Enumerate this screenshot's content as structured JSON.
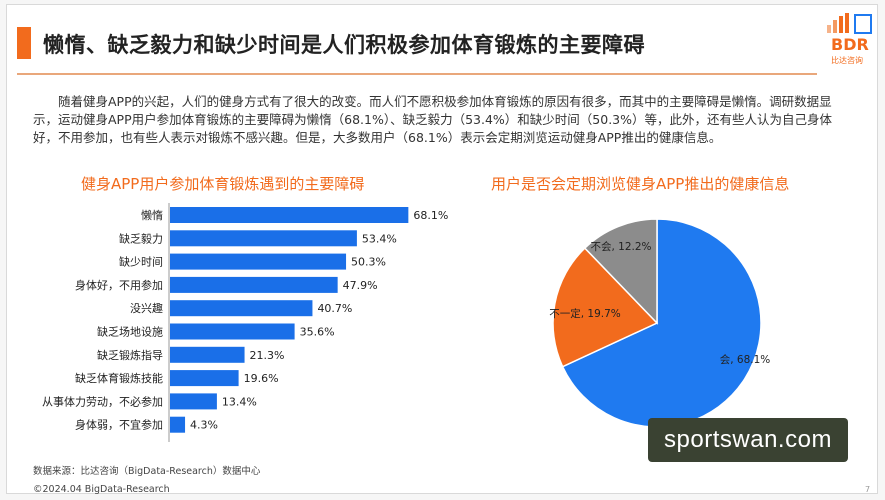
{
  "header": {
    "title": "懒惰、缺乏毅力和缺少时间是人们积极参加体育锻炼的主要障碍"
  },
  "logo": {
    "text": "BDR",
    "sub": "比达咨询"
  },
  "intro": "随着健身APP的兴起，人们的健身方式有了很大的改变。而人们不愿积极参加体育锻炼的原因有很多，而其中的主要障碍是懒惰。调研数据显示，运动健身APP用户参加体育锻炼的主要障碍为懒惰（68.1%）、缺乏毅力（53.4%）和缺少时间（50.3%）等，此外，还有些人认为自己身体好，不用参加，也有些人表示对锻炼不感兴趣。但是，大多数用户（68.1%）表示会定期浏览运动健身APP推出的健康信息。",
  "colors": {
    "accent": "#f26b1d",
    "bar": "#1a6fe8",
    "pie_yes": "#1f7af0",
    "pie_maybe": "#f26b1d",
    "pie_no": "#8c8c8c"
  },
  "chart_data": [
    {
      "type": "bar",
      "orientation": "horizontal",
      "title": "健身APP用户参加体育锻炼遇到的主要障碍",
      "categories": [
        "懒惰",
        "缺乏毅力",
        "缺少时间",
        "身体好，不用参加",
        "没兴趣",
        "缺乏场地设施",
        "缺乏锻炼指导",
        "缺乏体育锻炼技能",
        "从事体力劳动，不必参加",
        "身体弱，不宜参加"
      ],
      "values": [
        68.1,
        53.4,
        50.3,
        47.9,
        40.7,
        35.6,
        21.3,
        19.6,
        13.4,
        4.3
      ],
      "value_labels": [
        "68.1%",
        "53.4%",
        "50.3%",
        "47.9%",
        "40.7%",
        "35.6%",
        "21.3%",
        "19.6%",
        "13.4%",
        "4.3%"
      ],
      "unit": "%",
      "xlim": [
        0,
        100
      ],
      "grid": false
    },
    {
      "type": "pie",
      "title": "用户是否会定期浏览健身APP推出的健康信息",
      "labels": [
        "会",
        "不一定",
        "不会"
      ],
      "values": [
        68.1,
        19.7,
        12.2
      ],
      "slice_labels": [
        "会, 68.1%",
        "不一定, 19.7%",
        "不会, 12.2%"
      ]
    }
  ],
  "footer": {
    "source": "数据来源：比达咨询（BigData-Research）数据中心",
    "copyright": "©2024.04 BigData-Research",
    "page": "7"
  },
  "watermark": "sportswan.com"
}
